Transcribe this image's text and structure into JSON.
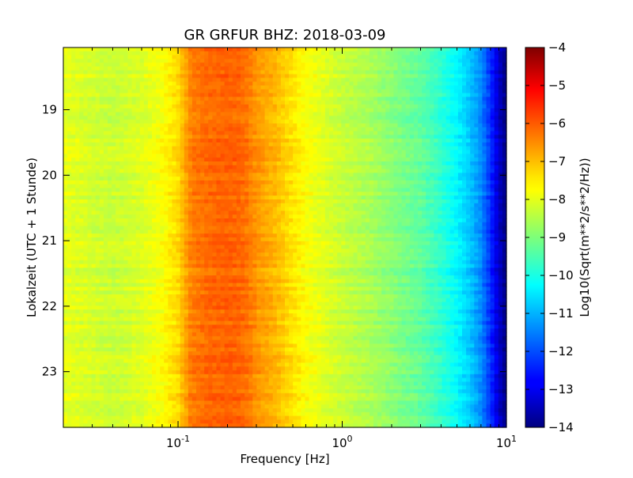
{
  "chart_data": {
    "type": "heatmap",
    "title": "GR GRFUR BHZ: 2018-03-09",
    "xlabel": "Frequency [Hz]",
    "ylabel": "Lokalzeit (UTC + 1 Stunde)",
    "x_scale": "log",
    "xlim": [
      0.02,
      10
    ],
    "x_ticks": [
      {
        "value": 0.1,
        "base": "10",
        "exp": "-1"
      },
      {
        "value": 1,
        "base": "10",
        "exp": "0"
      },
      {
        "value": 10,
        "base": "10",
        "exp": "1"
      }
    ],
    "ylim": [
      18.05,
      23.85
    ],
    "y_inverted": true,
    "y_ticks": [
      19,
      20,
      21,
      22,
      23
    ],
    "colorbar": {
      "label": "Log10(Sqrt(m**2/s**2/Hz))",
      "colormap": "jet",
      "range": [
        -14,
        -4
      ],
      "ticks": [
        -4,
        -5,
        -6,
        -7,
        -8,
        -9,
        -10,
        -11,
        -12,
        -13,
        -14
      ]
    },
    "spectrum_profile": {
      "frequency_hz": [
        0.02,
        0.04,
        0.06,
        0.08,
        0.1,
        0.12,
        0.15,
        0.2,
        0.25,
        0.3,
        0.4,
        0.5,
        0.6,
        0.8,
        1.0,
        1.5,
        2.0,
        3.0,
        4.0,
        5.0,
        6.0,
        7.0,
        8.0,
        9.0,
        10.0
      ],
      "log10_amplitude": [
        -8.0,
        -8.3,
        -8.1,
        -7.8,
        -7.4,
        -6.5,
        -6.3,
        -6.2,
        -6.3,
        -6.7,
        -7.1,
        -7.5,
        -7.8,
        -8.1,
        -8.3,
        -8.6,
        -8.9,
        -9.3,
        -9.8,
        -10.3,
        -10.8,
        -11.4,
        -12.3,
        -13.3,
        -14.0
      ]
    },
    "grid": false
  }
}
